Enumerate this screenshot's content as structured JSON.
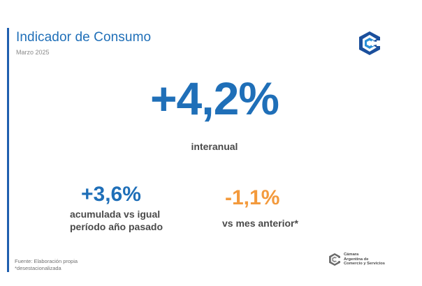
{
  "header": {
    "title": "Indicador de Consumo",
    "subtitle": "Marzo 2025"
  },
  "main": {
    "value": "+4,2%",
    "label": "interanual"
  },
  "accumulated": {
    "value": "+3,6%",
    "label_line1": "acumulada vs igual",
    "label_line2": "período año pasado"
  },
  "month_over_month": {
    "value": "-1,1%",
    "label": "vs mes anterior*"
  },
  "footer": {
    "source": "Fuente: Elaboración propia",
    "note": "*desestacionalizada",
    "org_line1": "Cámara",
    "org_line2": "Argentina de",
    "org_line3": "Comercio y Servicios"
  },
  "colors": {
    "primary_blue": "#1f6fb8",
    "positive": "#1f6fb8",
    "negative": "#f39a3d",
    "text": "#4a4a4a"
  },
  "icons": {
    "top_logo": "cac-logo-icon",
    "footer_logo": "cac-logo-small-icon"
  }
}
